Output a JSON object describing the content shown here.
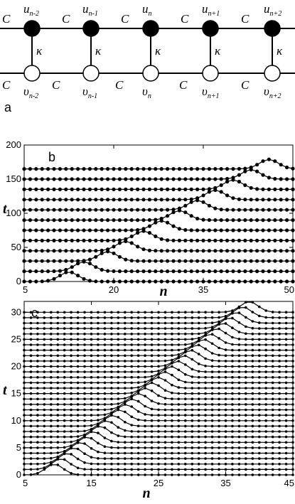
{
  "panel_a": {
    "letter": "a",
    "coupling_symbol": "C",
    "kappa_symbol": "κ",
    "top_nodes": [
      {
        "base": "u",
        "sub": "n-2"
      },
      {
        "base": "u",
        "sub": "n-1"
      },
      {
        "base": "u",
        "sub": "n"
      },
      {
        "base": "u",
        "sub": "n+1"
      },
      {
        "base": "u",
        "sub": "n+2"
      }
    ],
    "bottom_nodes": [
      {
        "base": "υ",
        "sub": "n-2"
      },
      {
        "base": "υ",
        "sub": "n-1"
      },
      {
        "base": "υ",
        "sub": "n"
      },
      {
        "base": "υ",
        "sub": "n+1"
      },
      {
        "base": "υ",
        "sub": "n+2"
      }
    ]
  },
  "chart_data": [
    {
      "type": "line",
      "panel_letter": "b",
      "xlabel": "n",
      "ylabel": "t",
      "xlim": [
        5,
        50
      ],
      "ylim": [
        0,
        200
      ],
      "xticks": [
        "5",
        "20",
        "35",
        "50"
      ],
      "yticks": [
        "0",
        "50",
        "100",
        "150",
        "200"
      ],
      "n_range": [
        5,
        50
      ],
      "series_baselines_t": [
        0,
        15,
        30,
        45,
        60,
        75,
        90,
        105,
        120,
        135,
        150,
        165
      ],
      "peak_positions_n": [
        12.5,
        15,
        19,
        22,
        25,
        28,
        31,
        34,
        37,
        40,
        43,
        46
      ],
      "peak_height_t": 14,
      "peak_width_n": 2.2
    },
    {
      "type": "line",
      "panel_letter": "c",
      "xlabel": "n",
      "ylabel": "t",
      "xlim": [
        5,
        45
      ],
      "ylim": [
        0,
        32
      ],
      "xticks": [
        "5",
        "15",
        "25",
        "35",
        "45"
      ],
      "yticks": [
        "0",
        "5",
        "10",
        "15",
        "20",
        "25",
        "30"
      ],
      "n_range": [
        5,
        45
      ],
      "series_count": 31,
      "series_step_t": 1,
      "peak_start_n": 9.5,
      "peak_end_n": 38.5,
      "peak_height_t": 2.0,
      "peak_width_n": 1.8
    }
  ]
}
